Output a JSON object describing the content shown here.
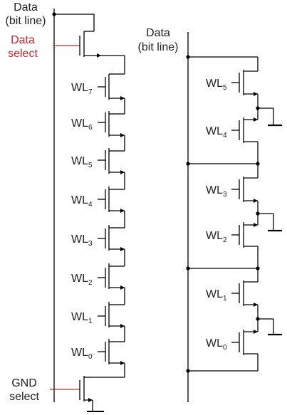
{
  "left_string": {
    "bitline_label": [
      "Data",
      "(bit line)"
    ],
    "data_select_label": [
      "Data",
      "select"
    ],
    "gnd_select_label": [
      "GND",
      "select"
    ],
    "wordlines": [
      {
        "prefix": "WL",
        "sub": "7"
      },
      {
        "prefix": "WL",
        "sub": "6"
      },
      {
        "prefix": "WL",
        "sub": "5"
      },
      {
        "prefix": "WL",
        "sub": "4"
      },
      {
        "prefix": "WL",
        "sub": "3"
      },
      {
        "prefix": "WL",
        "sub": "2"
      },
      {
        "prefix": "WL",
        "sub": "1"
      },
      {
        "prefix": "WL",
        "sub": "0"
      }
    ]
  },
  "right_nor": {
    "bitline_label": [
      "Data",
      "(bit line)"
    ],
    "wordlines": [
      {
        "prefix": "WL",
        "sub": "5"
      },
      {
        "prefix": "WL",
        "sub": "4"
      },
      {
        "prefix": "WL",
        "sub": "3"
      },
      {
        "prefix": "WL",
        "sub": "2"
      },
      {
        "prefix": "WL",
        "sub": "1"
      },
      {
        "prefix": "WL",
        "sub": "0"
      }
    ]
  },
  "colors": {
    "select_label": "#c8262a",
    "wire": "#000000"
  }
}
